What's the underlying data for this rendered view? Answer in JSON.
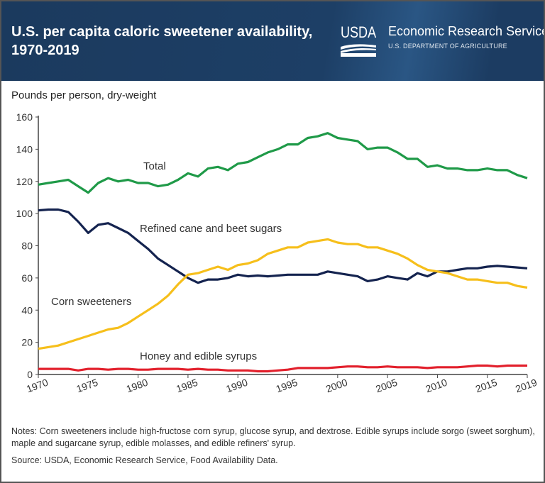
{
  "header": {
    "title": "U.S. per capita caloric sweetener availability, 1970-2019",
    "logo_text": "USDA",
    "org_name": "Economic Research Service",
    "org_sub": "U.S. DEPARTMENT OF AGRICULTURE",
    "bg_color": "#1b3a5e"
  },
  "notes": "Notes: Corn sweeteners include high-fructose corn syrup, glucose syrup, and dextrose. Edible syrups include sorgo (sweet sorghum), maple and sugarcane syrup, edible molasses, and edible refiners' syrup.",
  "source": "Source: USDA, Economic Research Service, Food Availability Data.",
  "chart_data": {
    "type": "line",
    "title": "U.S. per capita caloric sweetener availability, 1970-2019",
    "ylabel": "Pounds per person, dry-weight",
    "xlabel": "",
    "ylim": [
      0,
      160
    ],
    "xlim": [
      1970,
      2019
    ],
    "yticks": [
      "0",
      "20",
      "40",
      "60",
      "80",
      "100",
      "120",
      "140",
      "160"
    ],
    "xticks": [
      "1970",
      "1975",
      "1980",
      "1985",
      "1990",
      "1995",
      "2000",
      "2005",
      "2010",
      "2015",
      "2019"
    ],
    "grid": false,
    "legend": "inline labels",
    "x_start": 1970,
    "series": [
      {
        "name": "Total",
        "color": "#1f9a48",
        "values": [
          118,
          119,
          120,
          121,
          117,
          113,
          119,
          122,
          120,
          121,
          119,
          119,
          117,
          118,
          121,
          125,
          123,
          128,
          129,
          127,
          131,
          132,
          135,
          138,
          140,
          143,
          143,
          147,
          148,
          150,
          147,
          146,
          145,
          140,
          141,
          141,
          138,
          134,
          134,
          129,
          130,
          128,
          128,
          127,
          127,
          128,
          127,
          127,
          124,
          122
        ]
      },
      {
        "name": "Refined cane and beet sugars",
        "color": "#14234f",
        "values": [
          102,
          102.5,
          102.5,
          101,
          95,
          88,
          93,
          94,
          91,
          88,
          83,
          78,
          72,
          68,
          64,
          60,
          57,
          59,
          59,
          60,
          62,
          61,
          61.5,
          61,
          61.5,
          62,
          62,
          62,
          62,
          64,
          63,
          62,
          61,
          58,
          59,
          61,
          60,
          59,
          63,
          61,
          64,
          64,
          65,
          66,
          66,
          67,
          67.5,
          67,
          66.5,
          66
        ]
      },
      {
        "name": "Corn sweeteners",
        "color": "#f6bf1b",
        "values": [
          16,
          17,
          18,
          20,
          22,
          24,
          26,
          28,
          29,
          32,
          36,
          40,
          44,
          49,
          56,
          62,
          63,
          65,
          67,
          65,
          68,
          69,
          71,
          75,
          77,
          79,
          79,
          82,
          83,
          84,
          82,
          81,
          81,
          79,
          79,
          77,
          75,
          72,
          68,
          65,
          64,
          63,
          61,
          59,
          59,
          58,
          57,
          57,
          55,
          54
        ]
      },
      {
        "name": "Honey and edible syrups",
        "color": "#e2202c",
        "values": [
          3.5,
          3.5,
          3.5,
          3.5,
          2.5,
          3.5,
          3.5,
          3,
          3.5,
          3.5,
          3,
          3,
          3.5,
          3.5,
          3.5,
          3,
          3.5,
          3,
          3,
          2.5,
          2.5,
          2.5,
          2,
          2,
          2.5,
          3,
          4,
          4,
          4,
          4,
          4.5,
          5,
          5,
          4.5,
          4.5,
          5,
          4.5,
          4.5,
          4.5,
          4,
          4.5,
          4.5,
          4.5,
          5,
          5.5,
          5.5,
          5,
          5.5,
          5.5,
          5.5
        ]
      }
    ]
  }
}
